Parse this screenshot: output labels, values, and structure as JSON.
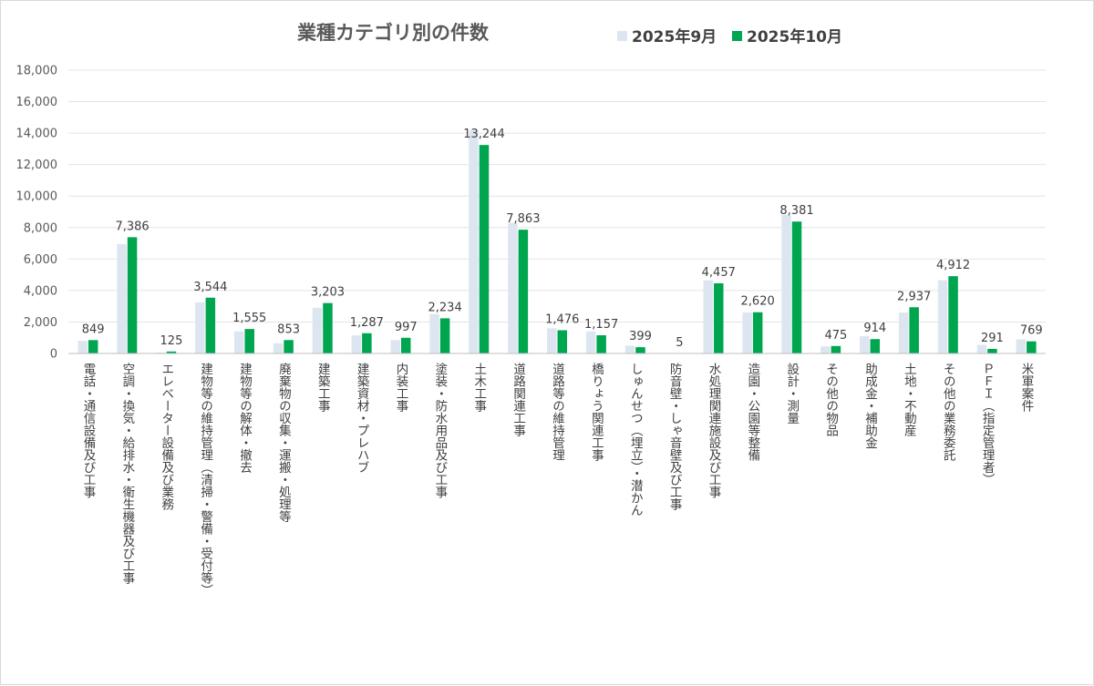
{
  "chart_data": {
    "type": "bar",
    "title": "業種カテゴリ別の件数",
    "xlabel": "",
    "ylabel": "",
    "ylim": [
      0,
      18000
    ],
    "yticks": [
      0,
      2000,
      4000,
      6000,
      8000,
      10000,
      12000,
      14000,
      16000,
      18000
    ],
    "ytick_labels": [
      "0",
      "2,000",
      "4,000",
      "6,000",
      "8,000",
      "10,000",
      "12,000",
      "14,000",
      "16,000",
      "18,000"
    ],
    "grid": true,
    "legend_position": "top-right",
    "categories": [
      "電話・通信設備及び工事",
      "空調・換気・給排水・衛生機器及び工事",
      "エレベーター設備及び業務",
      "建物等の維持管理（清掃・警備・受付等）",
      "建物等の解体・撤去",
      "廃棄物の収集・運搬・処理等",
      "建築工事",
      "建築資材・プレハブ",
      "内装工事",
      "塗装・防水用品及び工事",
      "土木工事",
      "道路関連工事",
      "道路等の維持管理",
      "橋りょう関連工事",
      "しゅんせつ（埋立）・潜かん",
      "防音壁・しゃ音壁及び工事",
      "水処理関連施設及び工事",
      "造園・公園等整備",
      "設計・測量",
      "その他の物品",
      "助成金・補助金",
      "土地・不動産",
      "その他の業務委託",
      "ＰＦＩ（指定管理者）",
      "米軍案件"
    ],
    "series": [
      {
        "name": "2025年9月",
        "color": "#dde6f0",
        "values": [
          800,
          6950,
          60,
          3250,
          1400,
          650,
          2900,
          1150,
          850,
          2500,
          14200,
          8300,
          1600,
          1400,
          500,
          0,
          4650,
          2600,
          8800,
          450,
          1100,
          2600,
          4650,
          550,
          900
        ]
      },
      {
        "name": "2025年10月",
        "color": "#00a550",
        "values": [
          849,
          7386,
          125,
          3544,
          1555,
          853,
          3203,
          1287,
          997,
          2234,
          13244,
          7863,
          1476,
          1157,
          399,
          5,
          4457,
          2620,
          8381,
          475,
          914,
          2937,
          4912,
          291,
          769
        ]
      }
    ],
    "data_labels": [
      "849",
      "7,386",
      "125",
      "3,544",
      "1,555",
      "853",
      "3,203",
      "1,287",
      "997",
      "2,234",
      "13,244",
      "7,863",
      "1,476",
      "1,157",
      "399",
      "5",
      "4,457",
      "2,620",
      "8,381",
      "475",
      "914",
      "2,937",
      "4,912",
      "291",
      "769"
    ]
  }
}
